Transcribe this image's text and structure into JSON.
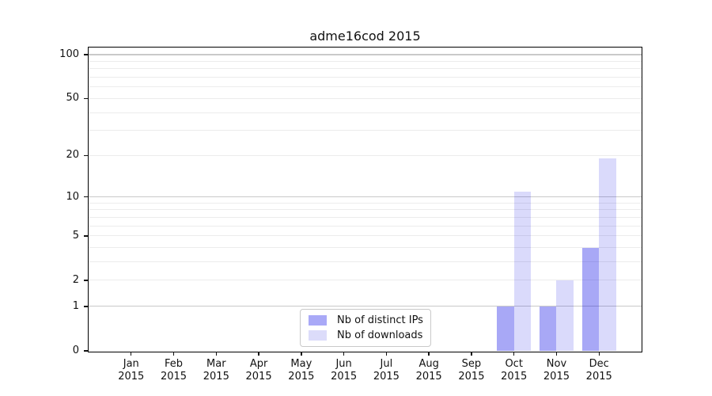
{
  "chart_data": {
    "type": "bar",
    "title": "adme16cod 2015",
    "categories": [
      "Jan",
      "Feb",
      "Mar",
      "Apr",
      "May",
      "Jun",
      "Jul",
      "Aug",
      "Sep",
      "Oct",
      "Nov",
      "Dec"
    ],
    "category_year": "2015",
    "series": [
      {
        "name": "Nb of distinct IPs",
        "values": [
          0,
          0,
          0,
          0,
          0,
          0,
          0,
          0,
          0,
          1,
          1,
          4
        ],
        "color_hex": "#a9a9f7",
        "color_rgba": "rgba(0,0,230,0.34)"
      },
      {
        "name": "Nb of downloads",
        "values": [
          0,
          0,
          0,
          0,
          0,
          0,
          0,
          0,
          0,
          11,
          2,
          19
        ],
        "color_hex": "#dcdcfa",
        "color_rgba": "rgba(0,0,230,0.145)"
      }
    ],
    "xlabel": "",
    "ylabel": "",
    "yscale": "log1p",
    "ylim": [
      0,
      112
    ],
    "y_ticks": [
      0,
      1,
      2,
      5,
      10,
      20,
      50,
      100
    ],
    "y_major_gridlines": [
      1,
      10,
      100
    ],
    "y_minor_gridlines": [
      2,
      3,
      4,
      5,
      6,
      7,
      8,
      9,
      20,
      30,
      40,
      50,
      60,
      70,
      80,
      90
    ],
    "grid": "on",
    "legend_position": "lower center",
    "colors": {
      "major_grid": "#c9c9c9",
      "minor_grid": "#ececec",
      "spine": "#000000",
      "text": "#111111",
      "background": "#ffffff"
    }
  }
}
